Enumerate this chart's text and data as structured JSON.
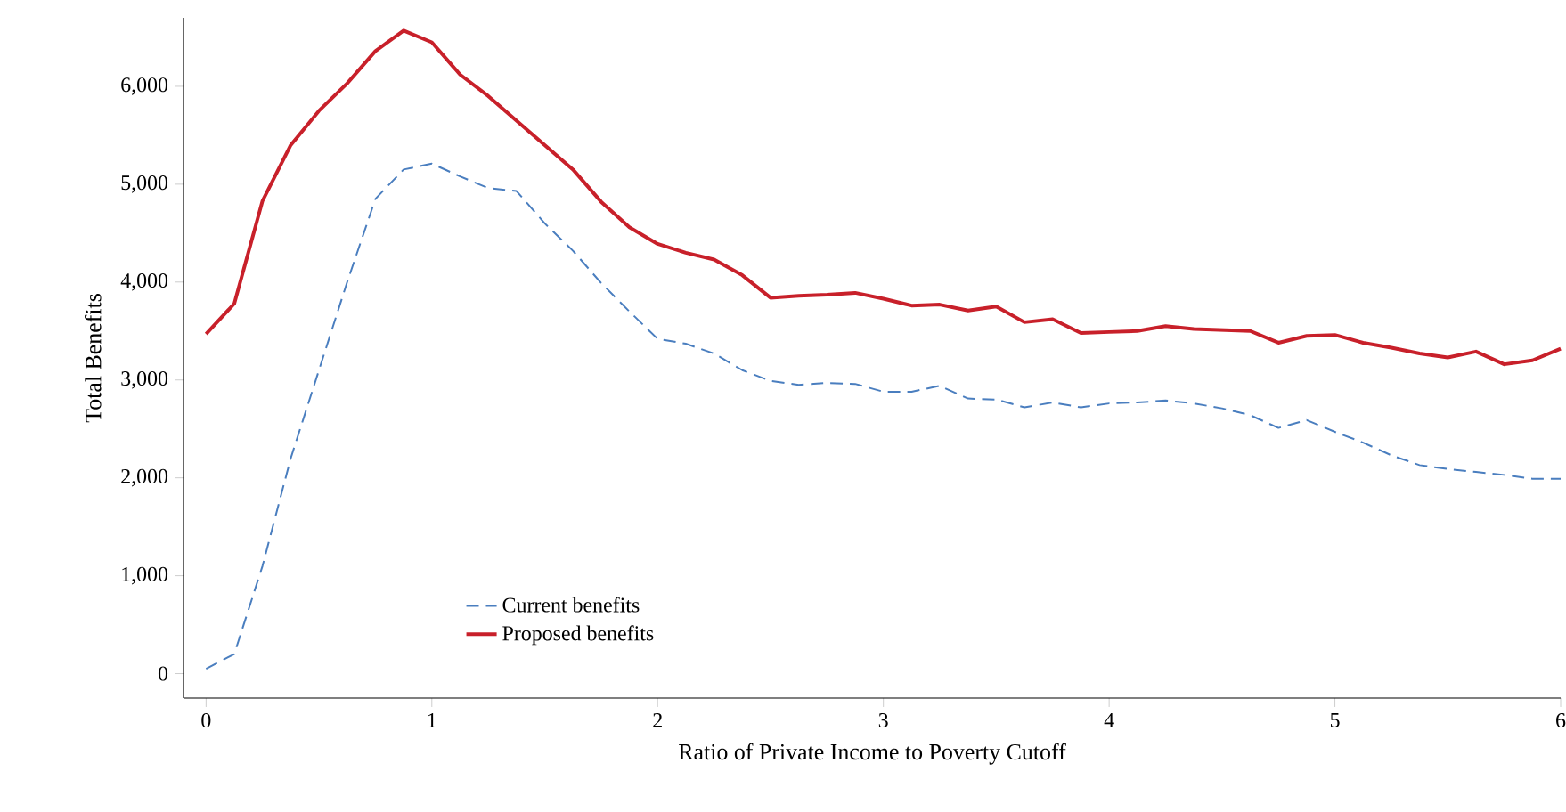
{
  "chart_data": {
    "type": "line",
    "xlabel": "Ratio of Private Income to Poverty Cutoff",
    "ylabel": "Total Benefits",
    "x": [
      0,
      0.125,
      0.25,
      0.375,
      0.5,
      0.625,
      0.75,
      0.875,
      1,
      1.125,
      1.25,
      1.375,
      1.5,
      1.625,
      1.75,
      1.875,
      2,
      2.125,
      2.25,
      2.375,
      2.5,
      2.625,
      2.75,
      2.875,
      3,
      3.125,
      3.25,
      3.375,
      3.5,
      3.625,
      3.75,
      3.875,
      4,
      4.125,
      4.25,
      4.375,
      4.5,
      4.625,
      4.75,
      4.875,
      5,
      5.125,
      5.25,
      5.375,
      5.5,
      5.625,
      5.75,
      5.875,
      6
    ],
    "series": [
      {
        "name": "Current benefits",
        "color": "#4a7ebf",
        "line_style": "dashed",
        "values": [
          50,
          200,
          1100,
          2200,
          3100,
          4000,
          4850,
          5150,
          5210,
          5080,
          4960,
          4930,
          4600,
          4320,
          3990,
          3700,
          3420,
          3370,
          3270,
          3100,
          2990,
          2950,
          2970,
          2960,
          2880,
          2880,
          2940,
          2810,
          2800,
          2720,
          2770,
          2720,
          2760,
          2770,
          2790,
          2760,
          2710,
          2640,
          2510,
          2590,
          2470,
          2360,
          2230,
          2130,
          2090,
          2060,
          2030,
          1990,
          1990
        ]
      },
      {
        "name": "Proposed benefits",
        "color": "#c8202a",
        "line_style": "solid",
        "values": [
          3470,
          3780,
          4830,
          5400,
          5750,
          6030,
          6360,
          6570,
          6450,
          6120,
          5900,
          5650,
          5400,
          5150,
          4820,
          4560,
          4390,
          4300,
          4230,
          4070,
          3840,
          3860,
          3870,
          3890,
          3830,
          3760,
          3770,
          3710,
          3750,
          3590,
          3620,
          3480,
          3490,
          3500,
          3550,
          3520,
          3510,
          3500,
          3380,
          3450,
          3460,
          3380,
          3330,
          3270,
          3230,
          3290,
          3160,
          3200,
          3320
        ]
      }
    ],
    "xlim": [
      -0.1,
      6
    ],
    "ylim": [
      -250,
      6700
    ],
    "xticks": [
      0,
      1,
      2,
      3,
      4,
      5,
      6
    ],
    "yticks": [
      {
        "value": 0,
        "label": "0"
      },
      {
        "value": 1000,
        "label": "1,000"
      },
      {
        "value": 2000,
        "label": "2,000"
      },
      {
        "value": 3000,
        "label": "3,000"
      },
      {
        "value": 4000,
        "label": "4,000"
      },
      {
        "value": 5000,
        "label": "5,000"
      },
      {
        "value": 6000,
        "label": "6,000"
      }
    ],
    "legend": "bottom",
    "marker": "none"
  }
}
